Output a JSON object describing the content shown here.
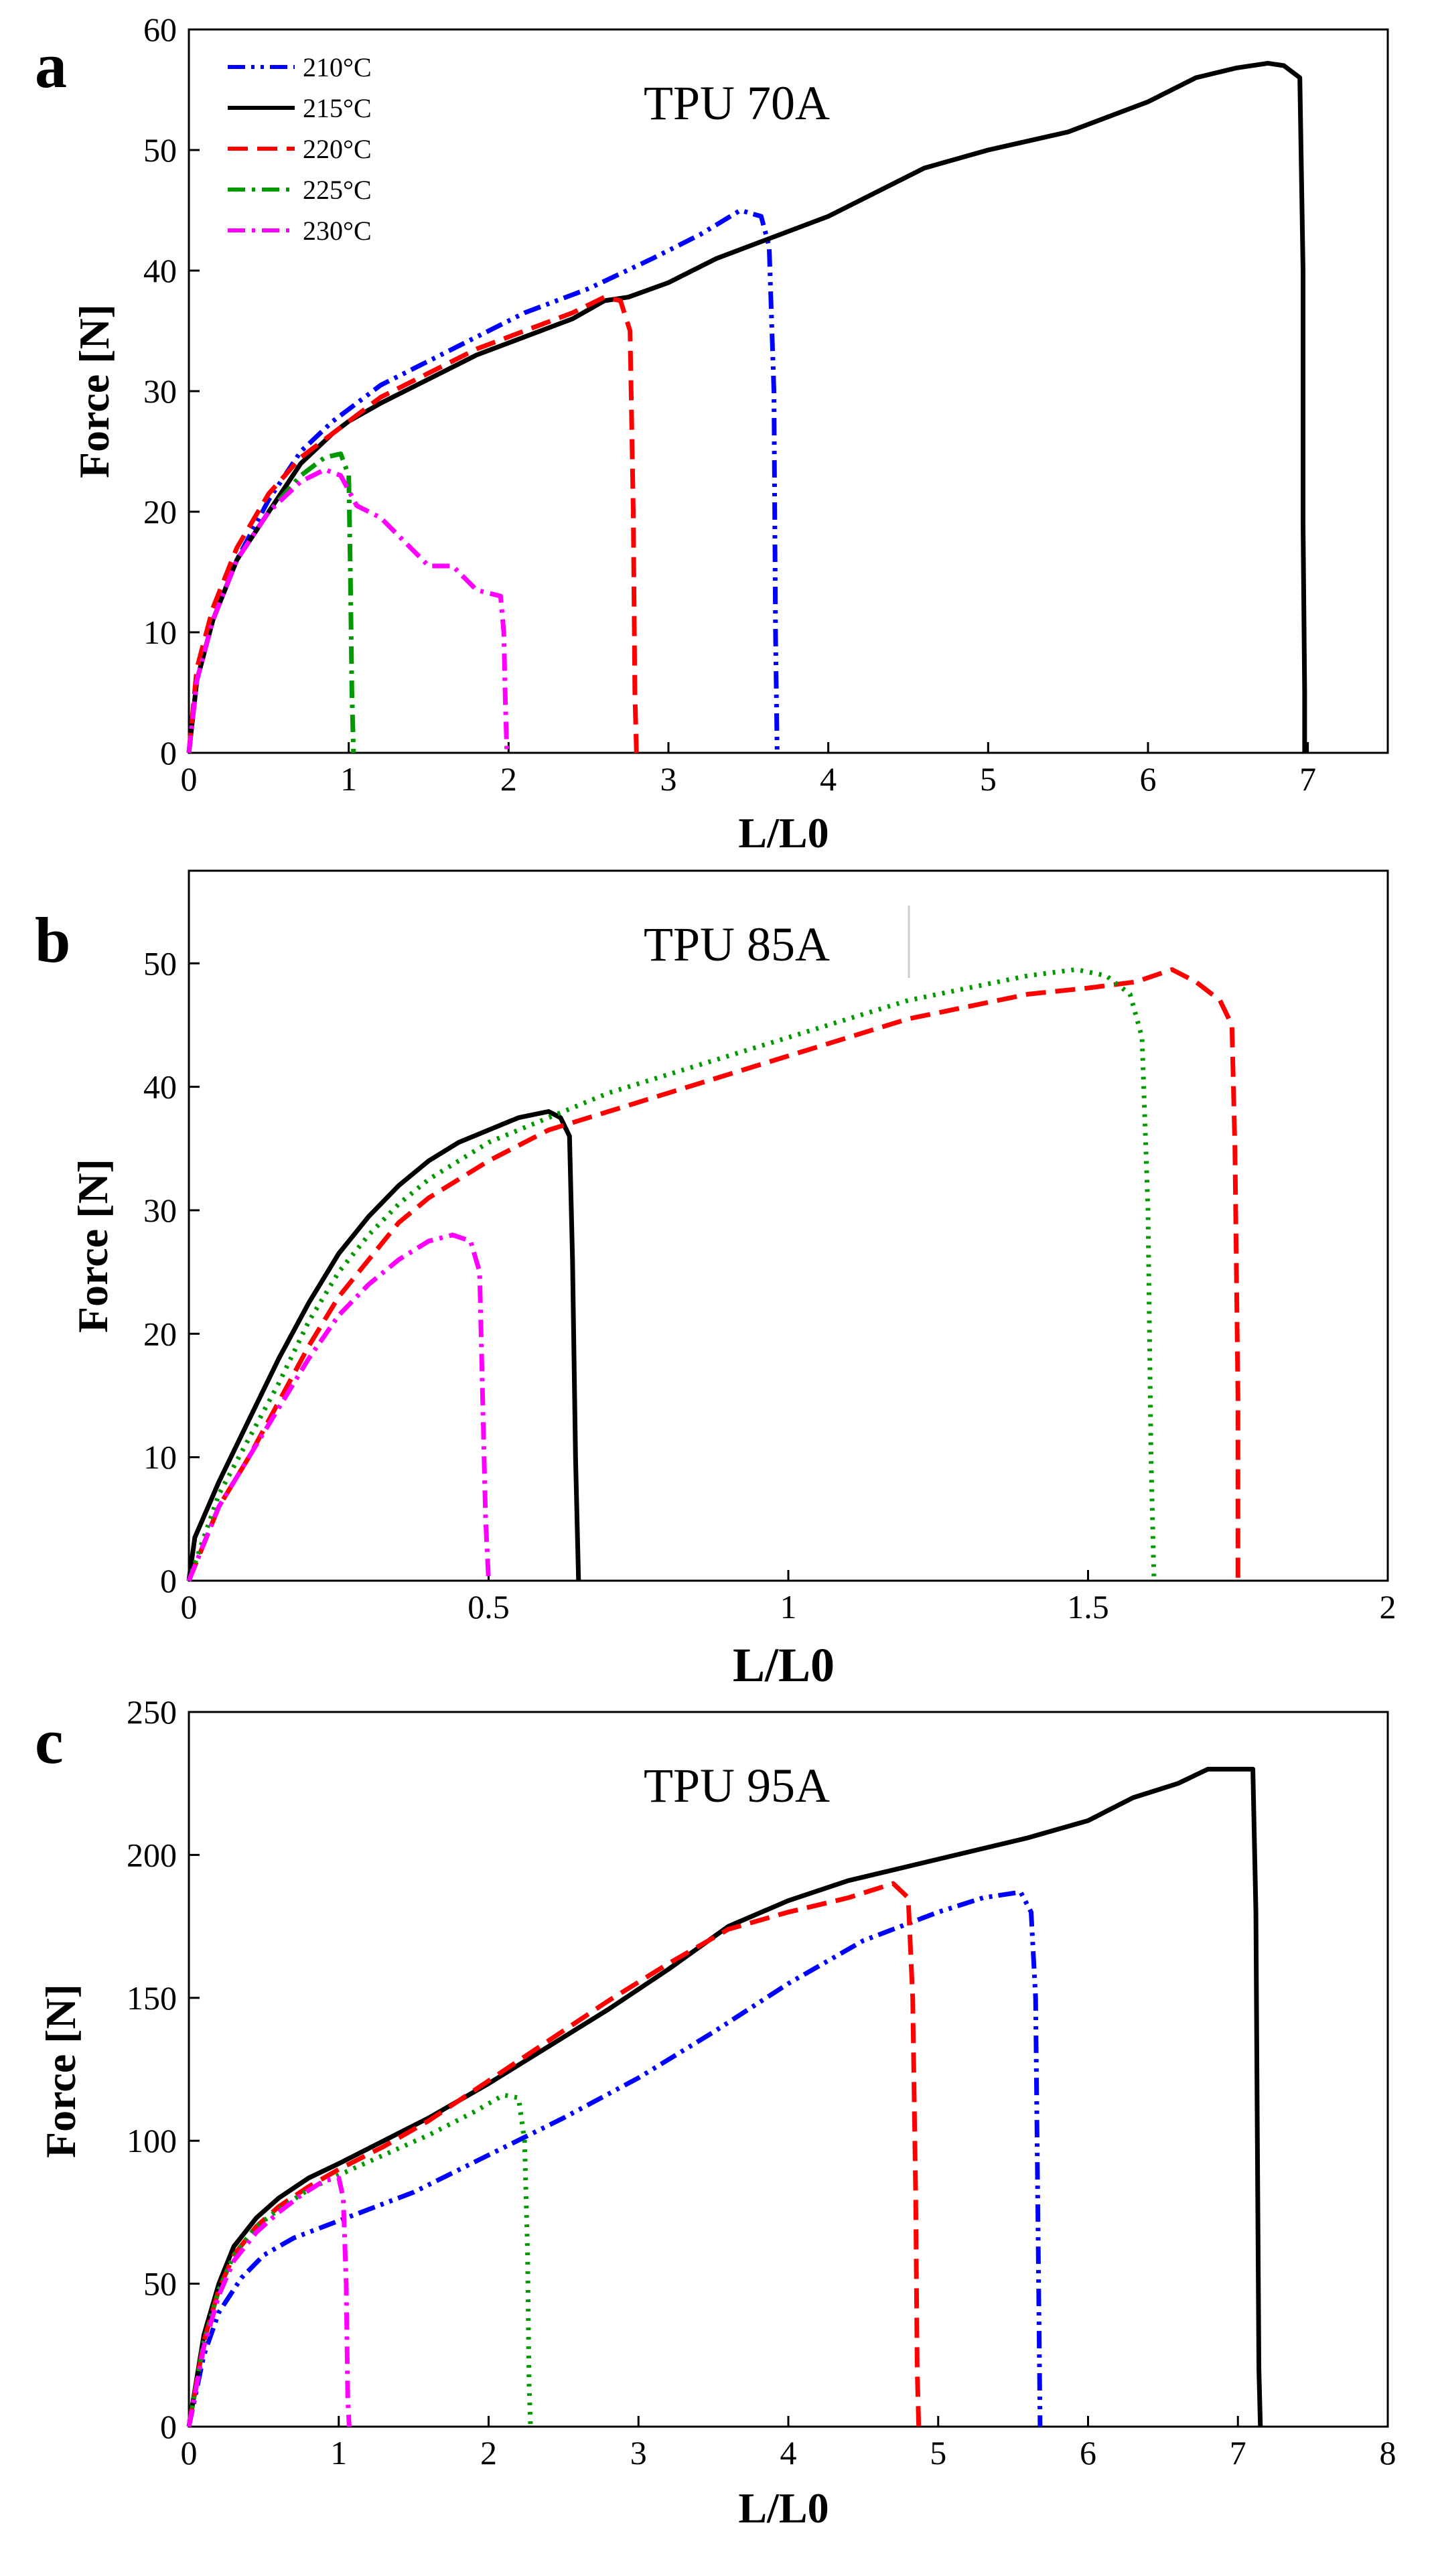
{
  "figure": {
    "panels": [
      "a",
      "b",
      "c"
    ]
  },
  "chart_data": [
    {
      "type": "line",
      "panel": "a",
      "title": "TPU 70A",
      "xlabel": "L/L0",
      "ylabel": "Force [N]",
      "xlim": [
        0,
        7.5
      ],
      "ylim": [
        0,
        60
      ],
      "xticks": [
        0,
        1,
        2,
        3,
        4,
        5,
        6,
        7
      ],
      "yticks": [
        0,
        10,
        20,
        30,
        40,
        50,
        60
      ],
      "legend_position": "top-left",
      "series": [
        {
          "name": "210°C",
          "color": "#0000ff",
          "style": "dash-dot-dot",
          "x": [
            0,
            0.05,
            0.15,
            0.3,
            0.5,
            0.7,
            0.9,
            1.0,
            1.2,
            1.5,
            1.8,
            2.1,
            2.5,
            2.9,
            3.2,
            3.45,
            3.58,
            3.63,
            3.66,
            3.67,
            3.68
          ],
          "y": [
            0,
            6,
            11,
            16,
            21,
            25,
            27.5,
            28.5,
            30.5,
            32.5,
            34.5,
            36.5,
            38.5,
            41,
            43,
            45,
            44.5,
            42,
            30,
            10,
            0
          ]
        },
        {
          "name": "215°C",
          "color": "#000000",
          "style": "solid",
          "x": [
            0,
            0.05,
            0.15,
            0.3,
            0.5,
            0.7,
            0.9,
            1.0,
            1.2,
            1.5,
            1.8,
            2.1,
            2.4,
            2.6,
            2.75,
            3.0,
            3.3,
            3.5,
            3.7,
            4.0,
            4.3,
            4.6,
            5.0,
            5.5,
            6.0,
            6.3,
            6.55,
            6.75,
            6.85,
            6.95,
            6.97,
            6.97,
            6.98,
            6.98
          ],
          "y": [
            0,
            6,
            11,
            16,
            20,
            24,
            26.5,
            27.5,
            29,
            31,
            33,
            34.5,
            36,
            37.5,
            37.8,
            39,
            41,
            42,
            43,
            44.5,
            46.5,
            48.5,
            50,
            51.5,
            54,
            56,
            56.8,
            57.2,
            57,
            56,
            40,
            19,
            5,
            0
          ]
        },
        {
          "name": "220°C",
          "color": "#ff0000",
          "style": "dashed",
          "x": [
            0,
            0.05,
            0.15,
            0.3,
            0.5,
            0.7,
            0.85,
            1.0,
            1.2,
            1.5,
            1.8,
            2.1,
            2.4,
            2.6,
            2.7,
            2.76,
            2.78,
            2.79,
            2.8
          ],
          "y": [
            0,
            7,
            12,
            17,
            21.5,
            24.5,
            26,
            27.5,
            29.5,
            31.5,
            33.5,
            35,
            36.5,
            37.8,
            37.5,
            35,
            20,
            5,
            0
          ]
        },
        {
          "name": "225°C",
          "color": "#009900",
          "style": "dash-dot",
          "x": [
            0,
            0.05,
            0.15,
            0.3,
            0.5,
            0.7,
            0.85,
            0.95,
            1.0,
            1.01,
            1.02,
            1.03
          ],
          "y": [
            0,
            6,
            11,
            16,
            20,
            23,
            24.5,
            24.8,
            23,
            15,
            5,
            0
          ]
        },
        {
          "name": "230°C",
          "color": "#ff00ff",
          "style": "dash-dot",
          "x": [
            0,
            0.05,
            0.15,
            0.3,
            0.5,
            0.7,
            0.85,
            0.95,
            1.05,
            1.2,
            1.35,
            1.5,
            1.65,
            1.8,
            1.95,
            1.97,
            1.98,
            1.99
          ],
          "y": [
            0,
            6,
            11,
            16,
            20,
            22.5,
            23.5,
            23,
            20.5,
            19.5,
            17.5,
            15.5,
            15.5,
            13.5,
            13,
            10,
            4,
            0
          ]
        }
      ]
    },
    {
      "type": "line",
      "panel": "b",
      "title": "TPU 85A",
      "xlabel": "L/L0",
      "ylabel": "Force [N]",
      "xlim": [
        0,
        2
      ],
      "ylim": [
        0,
        57.5
      ],
      "xticks": [
        0,
        0.5,
        1,
        1.5,
        2
      ],
      "xtick_labels": [
        "0",
        "0.5",
        "1",
        "1.5",
        "2"
      ],
      "yticks": [
        0,
        10,
        20,
        30,
        40,
        50
      ],
      "series": [
        {
          "name": "215°C",
          "color": "#000000",
          "style": "solid",
          "x": [
            0,
            0.01,
            0.05,
            0.1,
            0.15,
            0.2,
            0.25,
            0.3,
            0.35,
            0.4,
            0.45,
            0.5,
            0.55,
            0.6,
            0.62,
            0.635,
            0.64,
            0.645,
            0.65
          ],
          "y": [
            0,
            3.5,
            8,
            13,
            18,
            22.5,
            26.5,
            29.5,
            32,
            34,
            35.5,
            36.5,
            37.5,
            38,
            37.5,
            36,
            26,
            10,
            0
          ]
        },
        {
          "name": "220°C",
          "color": "#ff0000",
          "style": "dashed",
          "x": [
            0,
            0.05,
            0.1,
            0.15,
            0.2,
            0.25,
            0.3,
            0.35,
            0.4,
            0.5,
            0.6,
            0.7,
            0.8,
            0.9,
            1.0,
            1.1,
            1.2,
            1.3,
            1.4,
            1.5,
            1.58,
            1.64,
            1.68,
            1.72,
            1.74,
            1.745,
            1.75,
            1.75
          ],
          "y": [
            0,
            6,
            10,
            14.5,
            19,
            23,
            26,
            29,
            31,
            34,
            36.5,
            38,
            39.5,
            41,
            42.5,
            44,
            45.5,
            46.5,
            47.5,
            48,
            48.5,
            49.5,
            48.5,
            47,
            45,
            35,
            15,
            0
          ]
        },
        {
          "name": "225°C",
          "color": "#009900",
          "style": "dotted",
          "x": [
            0,
            0.05,
            0.1,
            0.15,
            0.2,
            0.25,
            0.3,
            0.35,
            0.4,
            0.5,
            0.6,
            0.7,
            0.8,
            0.9,
            1.0,
            1.1,
            1.2,
            1.3,
            1.4,
            1.48,
            1.53,
            1.57,
            1.59,
            1.6,
            1.605,
            1.61
          ],
          "y": [
            0,
            7,
            11.5,
            16,
            21,
            25,
            28,
            30.5,
            32.5,
            35.5,
            37.5,
            39.5,
            41,
            42.5,
            44,
            45.5,
            47,
            48,
            49,
            49.5,
            49,
            47.5,
            44,
            30,
            10,
            0
          ]
        },
        {
          "name": "230°C",
          "color": "#ff00ff",
          "style": "dash-dot",
          "x": [
            0,
            0.05,
            0.1,
            0.15,
            0.2,
            0.25,
            0.3,
            0.35,
            0.4,
            0.44,
            0.47,
            0.485,
            0.49,
            0.495,
            0.5
          ],
          "y": [
            0,
            6,
            10,
            14,
            18,
            21.5,
            24,
            26,
            27.5,
            28,
            27.5,
            25,
            15,
            5,
            0
          ]
        }
      ]
    },
    {
      "type": "line",
      "panel": "c",
      "title": "TPU 95A",
      "xlabel": "L/L0",
      "ylabel": "Force [N]",
      "xlim": [
        0,
        8
      ],
      "ylim": [
        0,
        250
      ],
      "xticks": [
        0,
        1,
        2,
        3,
        4,
        5,
        6,
        7,
        8
      ],
      "yticks": [
        0,
        50,
        100,
        150,
        200,
        250
      ],
      "series": [
        {
          "name": "210°C",
          "color": "#0000ff",
          "style": "dash-dot-dot",
          "x": [
            0,
            0.1,
            0.2,
            0.35,
            0.5,
            0.7,
            1.0,
            1.5,
            2.0,
            2.5,
            3.0,
            3.5,
            4.0,
            4.5,
            5.0,
            5.3,
            5.55,
            5.62,
            5.65,
            5.67,
            5.68
          ],
          "y": [
            0,
            25,
            40,
            52,
            60,
            66,
            72,
            82,
            95,
            108,
            122,
            138,
            155,
            170,
            180,
            185,
            187,
            180,
            150,
            50,
            0
          ]
        },
        {
          "name": "215°C",
          "color": "#000000",
          "style": "solid",
          "x": [
            0,
            0.1,
            0.2,
            0.3,
            0.45,
            0.6,
            0.8,
            1.0,
            1.3,
            1.6,
            2.0,
            2.4,
            2.8,
            3.2,
            3.6,
            4.0,
            4.4,
            4.8,
            5.2,
            5.6,
            6.0,
            6.3,
            6.6,
            6.8,
            6.95,
            7.1,
            7.12,
            7.13,
            7.14,
            7.15
          ],
          "y": [
            0,
            32,
            50,
            63,
            73,
            80,
            87,
            92,
            100,
            108,
            120,
            133,
            146,
            160,
            175,
            184,
            191,
            196,
            201,
            206,
            212,
            220,
            225,
            230,
            230,
            230,
            180,
            100,
            20,
            0
          ]
        },
        {
          "name": "220°C",
          "color": "#ff0000",
          "style": "dashed",
          "x": [
            0,
            0.1,
            0.2,
            0.3,
            0.45,
            0.6,
            0.8,
            1.0,
            1.3,
            1.6,
            2.0,
            2.4,
            2.8,
            3.2,
            3.6,
            4.0,
            4.4,
            4.7,
            4.8,
            4.83,
            4.85,
            4.86,
            4.87
          ],
          "y": [
            0,
            30,
            48,
            60,
            70,
            77,
            84,
            90,
            98,
            107,
            121,
            135,
            149,
            162,
            174,
            180,
            185,
            190,
            185,
            150,
            80,
            20,
            0
          ]
        },
        {
          "name": "225°C",
          "color": "#009900",
          "style": "dotted",
          "x": [
            0,
            0.1,
            0.2,
            0.3,
            0.45,
            0.6,
            0.8,
            1.0,
            1.3,
            1.6,
            1.9,
            2.1,
            2.2,
            2.24,
            2.26,
            2.27,
            2.28
          ],
          "y": [
            0,
            30,
            48,
            60,
            70,
            76,
            83,
            88,
            95,
            102,
            110,
            116,
            115,
            100,
            60,
            15,
            0
          ]
        },
        {
          "name": "230°C",
          "color": "#ff00ff",
          "style": "dash-dot",
          "x": [
            0,
            0.1,
            0.2,
            0.3,
            0.45,
            0.6,
            0.75,
            0.9,
            1.0,
            1.03,
            1.05,
            1.06,
            1.07
          ],
          "y": [
            0,
            28,
            46,
            58,
            68,
            75,
            81,
            86,
            87,
            80,
            50,
            10,
            0
          ]
        }
      ]
    }
  ]
}
